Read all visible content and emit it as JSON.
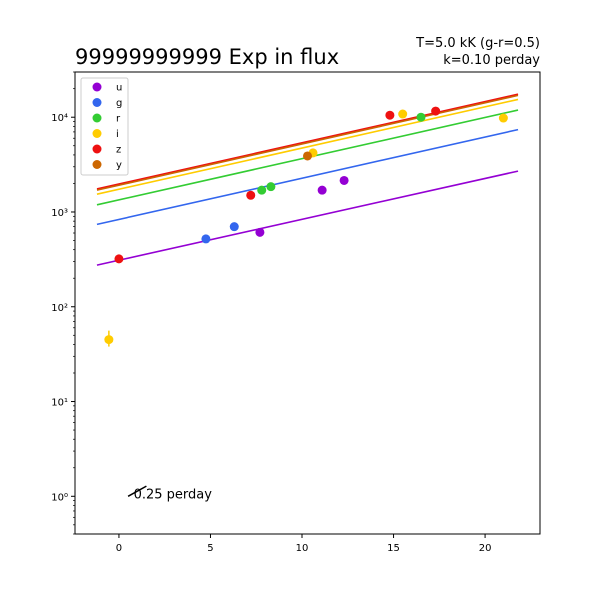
{
  "chart_data": {
    "type": "scatter",
    "title": "99999999999 Exp in flux",
    "subtitle_lines": [
      "T=5.0 kK (g-r=0.5)",
      "k=0.10 perday"
    ],
    "xlabel": "",
    "ylabel": "",
    "xlim": [
      -2.4,
      23
    ],
    "ylim": [
      0.4,
      30000
    ],
    "yscale": "log",
    "grid": false,
    "legend_position": "top-left",
    "x_ticks": [
      0,
      5,
      10,
      15,
      20
    ],
    "x_tick_labels": [
      "0",
      "5",
      "10",
      "15",
      "20"
    ],
    "y_ticks": [
      1,
      10,
      100,
      1000,
      10000
    ],
    "y_tick_labels": [
      "10⁰",
      "10¹",
      "10²",
      "10³",
      "10⁴"
    ],
    "series": [
      {
        "name": "u",
        "color": "#9400d3",
        "points": [
          {
            "x": 7.7,
            "y": 610
          },
          {
            "x": 11.1,
            "y": 1700
          },
          {
            "x": 12.3,
            "y": 2150
          }
        ],
        "fit_line": {
          "x": [
            -1.2,
            21.8
          ],
          "y": [
            275,
            2700
          ]
        }
      },
      {
        "name": "g",
        "color": "#3366ee",
        "points": [
          {
            "x": 4.75,
            "y": 520
          },
          {
            "x": 6.3,
            "y": 700
          }
        ],
        "fit_line": {
          "x": [
            -1.2,
            21.8
          ],
          "y": [
            740,
            7400
          ]
        }
      },
      {
        "name": "r",
        "color": "#33cc33",
        "points": [
          {
            "x": 7.8,
            "y": 1700
          },
          {
            "x": 8.3,
            "y": 1850
          },
          {
            "x": 16.5,
            "y": 10000
          }
        ],
        "fit_line": {
          "x": [
            -1.2,
            21.8
          ],
          "y": [
            1190,
            11900
          ]
        }
      },
      {
        "name": "i",
        "color": "#ffcc00",
        "points": [
          {
            "x": -0.55,
            "y": 45,
            "yerr_low": 38,
            "yerr_high": 56
          },
          {
            "x": 10.6,
            "y": 4200
          },
          {
            "x": 15.5,
            "y": 10800
          },
          {
            "x": 21.0,
            "y": 9800
          }
        ],
        "fit_line": {
          "x": [
            -1.2,
            21.8
          ],
          "y": [
            1540,
            15400
          ]
        }
      },
      {
        "name": "z",
        "color": "#ee1111",
        "points": [
          {
            "x": 0.0,
            "y": 320
          },
          {
            "x": 7.2,
            "y": 1500
          },
          {
            "x": 14.8,
            "y": 10500
          },
          {
            "x": 17.3,
            "y": 11600
          }
        ],
        "fit_line": {
          "x": [
            -1.2,
            21.8
          ],
          "y": [
            1750,
            17500
          ]
        }
      },
      {
        "name": "y",
        "color": "#cc6600",
        "points": [
          {
            "x": 10.3,
            "y": 3900
          }
        ],
        "fit_line": {
          "x": [
            -1.2,
            21.8
          ],
          "y": [
            1700,
            17000
          ]
        }
      }
    ],
    "annotation": {
      "text": "0.25 perday",
      "slope_marker": {
        "x": [
          0.5,
          1.5
        ],
        "y": [
          1.0,
          1.28
        ]
      },
      "text_x": 0.8,
      "text_y": 1.05
    }
  }
}
